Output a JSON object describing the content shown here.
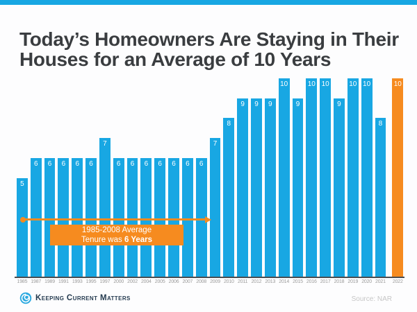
{
  "title_line1": "Today’s Homeowners Are Staying in Their",
  "title_line2": "Houses for an Average of 10 Years",
  "chart_data": {
    "type": "bar",
    "title": "Today’s Homeowners Are Staying in Their Houses for an Average of 10 Years",
    "categories": [
      "1985",
      "1987",
      "1989",
      "1991",
      "1993",
      "1995",
      "1997",
      "2000",
      "2002",
      "2004",
      "2005",
      "2006",
      "2007",
      "2008",
      "2009",
      "2010",
      "2011",
      "2012",
      "2013",
      "2014",
      "2015",
      "2016",
      "2017",
      "2018",
      "2019",
      "2020",
      "2021",
      "2022"
    ],
    "values": [
      5,
      6,
      6,
      6,
      6,
      6,
      7,
      6,
      6,
      6,
      6,
      6,
      6,
      6,
      7,
      8,
      9,
      9,
      9,
      10,
      9,
      10,
      10,
      9,
      10,
      10,
      8,
      10
    ],
    "xlabel": "",
    "ylabel": "",
    "ylim": [
      0,
      10
    ],
    "grid": false,
    "legend": false,
    "value_labels": "inside-top",
    "highlight_category": "2022"
  },
  "annotation": {
    "line1": "1985-2008 Average",
    "line2_prefix": "Tenure was ",
    "line2_bold": "6 Years",
    "span_start_year": "1985",
    "span_end_year": "2008"
  },
  "footer": {
    "brand": "Keeping Current Matters",
    "source": "Source: NAR"
  },
  "colors": {
    "bar_blue": "#18A7E3",
    "highlight_orange": "#F68B1F",
    "title_text": "#3A3D40",
    "axis_line": "#4A4D50",
    "tick_label": "#9B9B9B",
    "brand_navy": "#253B50",
    "source_gray": "#C6C6C6"
  }
}
